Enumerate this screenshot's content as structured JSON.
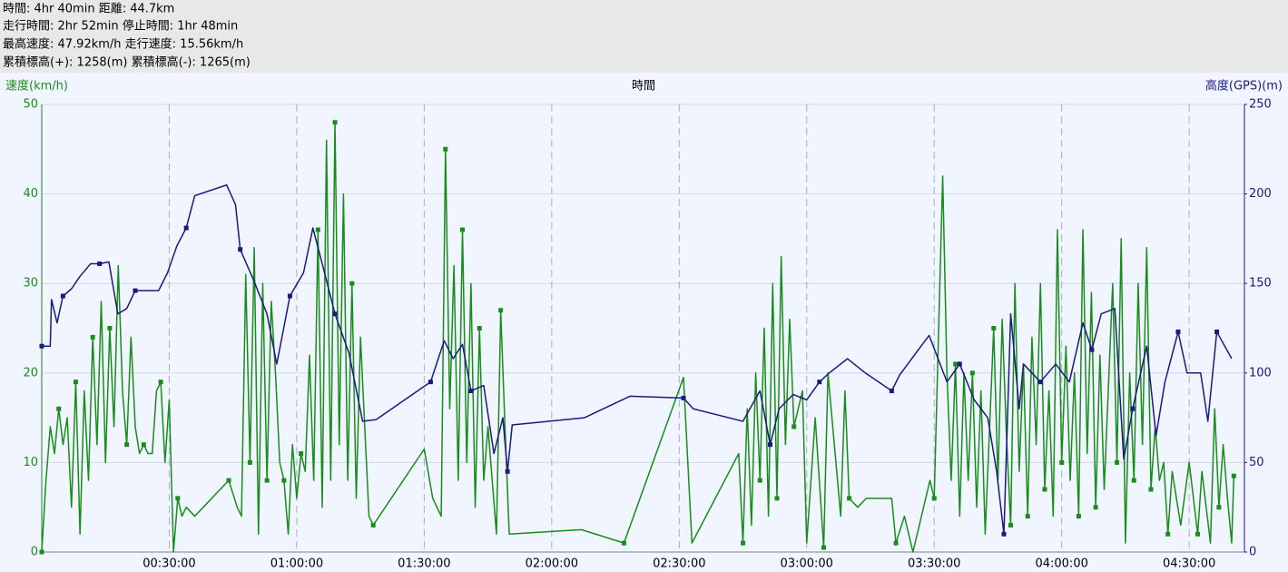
{
  "chart_data": {
    "type": "line",
    "summary": [
      "時間: 4hr 40min 距離: 44.7km",
      "走行時間: 2hr 52min 停止時間: 1hr 48min",
      "最高速度: 47.92km/h 走行速度: 15.56km/h",
      "累積標高(+): 1258(m) 累積標高(-): 1265(m)"
    ],
    "xlabel": "時間",
    "ylabel": "速度(km/h)",
    "y2label": "高度(GPS)(m)",
    "xlim": [
      0,
      283
    ],
    "ylim": [
      0,
      50
    ],
    "y2lim": [
      0,
      250
    ],
    "xticks": [
      {
        "value": 30,
        "label": "00:30:00"
      },
      {
        "value": 60,
        "label": "01:00:00"
      },
      {
        "value": 90,
        "label": "01:30:00"
      },
      {
        "value": 120,
        "label": "02:00:00"
      },
      {
        "value": 150,
        "label": "02:30:00"
      },
      {
        "value": 180,
        "label": "03:00:00"
      },
      {
        "value": 210,
        "label": "03:30:00"
      },
      {
        "value": 240,
        "label": "04:00:00"
      },
      {
        "value": 270,
        "label": "04:30:00"
      }
    ],
    "yticks": [
      0,
      10,
      20,
      30,
      40,
      50
    ],
    "y2ticks": [
      0,
      50,
      100,
      150,
      200,
      250
    ],
    "grid": true,
    "series": [
      {
        "color": "#1a8c1a",
        "axis": "y",
        "x": [
          0,
          1,
          2,
          3,
          4,
          5,
          6,
          7,
          8,
          9,
          10,
          11,
          12,
          13,
          14,
          15,
          16,
          17,
          18,
          19,
          20,
          21,
          22,
          23,
          24,
          25,
          26,
          27,
          28,
          29,
          30,
          31,
          32,
          33,
          34,
          36,
          44,
          46,
          47,
          48,
          49,
          50,
          51,
          52,
          53,
          54,
          55,
          56,
          57,
          58,
          59,
          60,
          61,
          62,
          63,
          64,
          65,
          66,
          67,
          68,
          69,
          70,
          71,
          72,
          73,
          74,
          75,
          77,
          78,
          90,
          92,
          94,
          95,
          96,
          97,
          98,
          99,
          100,
          101,
          102,
          103,
          104,
          105,
          107,
          108,
          109,
          110,
          127,
          137,
          151,
          153,
          164,
          165,
          166,
          167,
          168,
          169,
          170,
          171,
          172,
          173,
          174,
          175,
          176,
          177,
          179,
          180,
          182,
          184,
          185,
          188,
          189,
          190,
          192,
          194,
          200,
          201,
          203,
          205,
          209,
          210,
          212,
          213,
          214,
          215,
          216,
          217,
          218,
          219,
          220,
          221,
          222,
          224,
          225,
          226,
          227,
          228,
          229,
          230,
          231,
          232,
          233,
          234,
          235,
          236,
          237,
          238,
          239,
          240,
          241,
          242,
          243,
          244,
          245,
          246,
          247,
          248,
          249,
          250,
          252,
          253,
          254,
          255,
          256,
          257,
          258,
          259,
          260,
          261,
          262,
          263,
          264,
          265,
          266,
          268,
          270,
          272,
          273,
          275,
          276,
          277,
          278,
          279,
          280,
          280.5
        ],
        "values": [
          0,
          8,
          14,
          11,
          16,
          12,
          15,
          5,
          19,
          2,
          18,
          8,
          24,
          12,
          28,
          10,
          25,
          14,
          32,
          18,
          12,
          24,
          14,
          11,
          12,
          11,
          11,
          18,
          19,
          10,
          17,
          0,
          6,
          4,
          5,
          4,
          8,
          5,
          4,
          31,
          10,
          34,
          2,
          30,
          8,
          28,
          20,
          10,
          8,
          2,
          12,
          6,
          11,
          9,
          22,
          8,
          36,
          5,
          46,
          8,
          48,
          12,
          40,
          8,
          30,
          6,
          24,
          4,
          3,
          11.5,
          6,
          4,
          45,
          16,
          32,
          8,
          36,
          10,
          30,
          5,
          25,
          8,
          14,
          2,
          27,
          14,
          2,
          2.5,
          1,
          19.5,
          1,
          11,
          1,
          16,
          3,
          20,
          8,
          25,
          4,
          30,
          6,
          33,
          12,
          26,
          14,
          18,
          1,
          15,
          0.5,
          20,
          4,
          18,
          6,
          5,
          6,
          6,
          1,
          4,
          0,
          8,
          6,
          42,
          20,
          8,
          21,
          4,
          20,
          8,
          20,
          5,
          18,
          2,
          25,
          8,
          26,
          13,
          3,
          30,
          9,
          21,
          4,
          24,
          12,
          30,
          7,
          18,
          4,
          36,
          10,
          23,
          8,
          20,
          4,
          36,
          11,
          29,
          5,
          22,
          7,
          30,
          10,
          35,
          1,
          20,
          8,
          30,
          12,
          34,
          7,
          14,
          8,
          10,
          2,
          9,
          3,
          10,
          2,
          9,
          1,
          16,
          5,
          12,
          6,
          1,
          8.5
        ]
      },
      {
        "color": "#1a1a80",
        "axis": "y2",
        "x": [
          0,
          2,
          2.3,
          3.6,
          5,
          7,
          9,
          11.5,
          13.6,
          15.8,
          17.9,
          20,
          22,
          27.5,
          29.6,
          31.8,
          34,
          36,
          43.5,
          45.6,
          46.7,
          50,
          53,
          55.3,
          58.4,
          61.6,
          63.8,
          66,
          69,
          72.3,
          75.5,
          78.7,
          91.5,
          94.7,
          96.8,
          99,
          101,
          104,
          106.4,
          108.5,
          109.6,
          110.7,
          127.7,
          138.4,
          151,
          153.3,
          165,
          169,
          171.4,
          173.5,
          176.8,
          180,
          183,
          185.3,
          189.6,
          193.8,
          200,
          201.9,
          208.8,
          213,
          216,
          219.4,
          222.6,
          224.7,
          226.4,
          228,
          230,
          231,
          235,
          238.6,
          241.8,
          245,
          247.1,
          249.3,
          252.5,
          254.6,
          256.7,
          260,
          262.2,
          264.3,
          267.4,
          269.5,
          272.7,
          274.4,
          276.5,
          280
        ],
        "values": [
          115,
          115,
          141,
          128,
          143,
          147,
          154,
          161,
          161,
          162,
          133,
          136,
          146,
          146,
          156,
          171,
          181,
          199,
          205,
          194,
          169,
          151,
          133,
          105,
          143,
          156,
          181,
          161,
          133,
          111,
          73,
          74,
          95,
          118,
          108,
          116,
          90,
          93,
          55,
          75,
          45,
          71,
          75,
          87,
          86,
          80,
          73,
          90,
          60,
          80,
          88,
          85,
          95,
          100,
          108,
          100,
          90,
          99,
          121,
          95,
          105,
          85,
          75,
          45,
          10,
          133,
          80,
          105,
          95,
          105,
          95,
          128,
          113,
          133,
          136,
          52,
          80,
          115,
          65,
          95,
          123,
          100,
          100,
          73,
          123,
          108
        ]
      }
    ]
  }
}
